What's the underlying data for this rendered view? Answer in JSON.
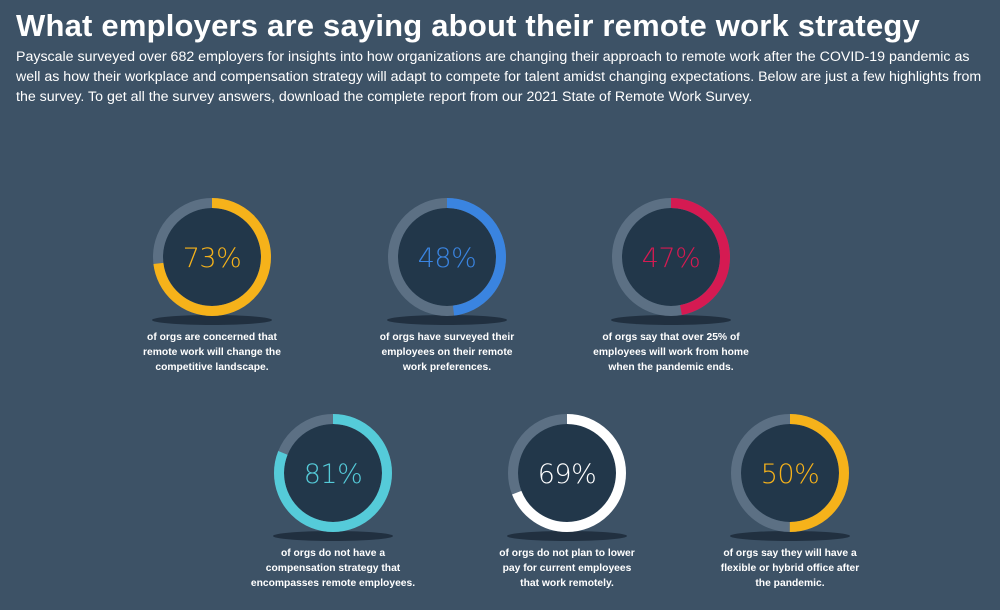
{
  "header": {
    "title": "What employers are saying about their remote work strategy",
    "intro": "Payscale surveyed over 682 employers for insights into how organizations are changing their approach to remote work after the COVID-19 pandemic as well as how their workplace and compensation strategy will adapt to compete for talent amidst changing expectations. Below are just a few highlights from the survey. To get all the survey answers, download the complete report from our 2021 State of Remote Work Survey."
  },
  "colors": {
    "background": "#3d5266",
    "track": "#5c7084",
    "inner": "#22374a"
  },
  "chart_data": {
    "type": "pie",
    "items": [
      {
        "value": 73,
        "label": "73%",
        "caption": [
          "of orgs are concerned that",
          "remote work will change the",
          "competitive landscape."
        ],
        "color": "#f6b21a"
      },
      {
        "value": 48,
        "label": "48%",
        "caption": [
          "of orgs have surveyed their",
          "employees on their remote",
          "work preferences."
        ],
        "color": "#3a84e0"
      },
      {
        "value": 47,
        "label": "47%",
        "caption": [
          "of orgs say that over 25% of",
          "employees will work from home",
          "when the pandemic ends."
        ],
        "color": "#d51a52"
      },
      {
        "value": 81,
        "label": "81%",
        "caption": [
          "of orgs do not have a",
          "compensation strategy that",
          "encompasses remote employees."
        ],
        "color": "#55cbd9"
      },
      {
        "value": 69,
        "label": "69%",
        "caption": [
          "of orgs do not plan to lower",
          "pay for current employees",
          "that work remotely."
        ],
        "color": "#ffffff"
      },
      {
        "value": 50,
        "label": "50%",
        "caption": [
          "of orgs say they will have a",
          "flexible or hybrid office after",
          "the pandemic."
        ],
        "color": "#f6b21a"
      }
    ]
  }
}
